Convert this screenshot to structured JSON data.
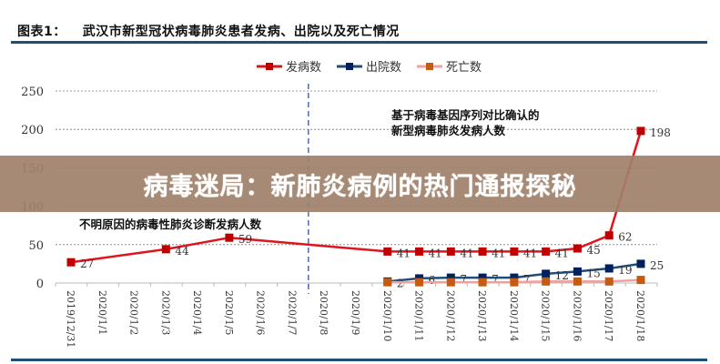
{
  "header": {
    "figure_number": "图表1：",
    "title": "武汉市新型冠状病毒肺炎患者发病、出院以及死亡情况"
  },
  "banner": {
    "text": "病毒迷局：新肺炎病例的热门通报探秘"
  },
  "annotations": {
    "left": "不明原因的病毒性肺炎诊断发病人数",
    "right_line1": "基于病毒基因序列对比确认的",
    "right_line2": "新型病毒肺炎发病人数"
  },
  "legend": [
    {
      "name": "发病数",
      "color": "#d9141b",
      "marker": "#c00000"
    },
    {
      "name": "出院数",
      "color": "#1f4e79",
      "marker": "#002060"
    },
    {
      "name": "死亡数",
      "color": "#f4a09a",
      "marker": "#c55a11"
    }
  ],
  "chart_data": {
    "type": "line",
    "title": "武汉市新型冠状病毒肺炎患者发病、出院以及死亡情况",
    "xlabel": "",
    "ylabel": "",
    "ylim": [
      0,
      250
    ],
    "yticks": [
      0,
      50,
      100,
      150,
      200,
      250
    ],
    "grid": true,
    "legend_position": "top",
    "categories": [
      "2019/12/31",
      "2020/1/1",
      "2020/1/2",
      "2020/1/3",
      "2020/1/4",
      "2020/1/5",
      "2020/1/6",
      "2020/1/7",
      "2020/1/8",
      "2020/1/9",
      "2020/1/10",
      "2020/1/11",
      "2020/1/12",
      "2020/1/13",
      "2020/1/14",
      "2020/1/15",
      "2020/1/16",
      "2020/1/17",
      "2020/1/18"
    ],
    "divider_after": "2020/1/7",
    "series": [
      {
        "name": "发病数",
        "values": [
          27,
          null,
          null,
          44,
          null,
          59,
          null,
          null,
          null,
          null,
          41,
          41,
          41,
          41,
          41,
          41,
          45,
          62,
          198
        ],
        "labels": true
      },
      {
        "name": "出院数",
        "values": [
          null,
          null,
          null,
          null,
          null,
          null,
          null,
          null,
          null,
          null,
          2,
          6,
          7,
          7,
          7,
          12,
          15,
          19,
          25
        ],
        "labels": true
      },
      {
        "name": "死亡数",
        "values": [
          null,
          null,
          null,
          null,
          null,
          null,
          null,
          null,
          null,
          null,
          1,
          1,
          1,
          1,
          1,
          2,
          2,
          2,
          4
        ],
        "labels": false
      }
    ]
  }
}
